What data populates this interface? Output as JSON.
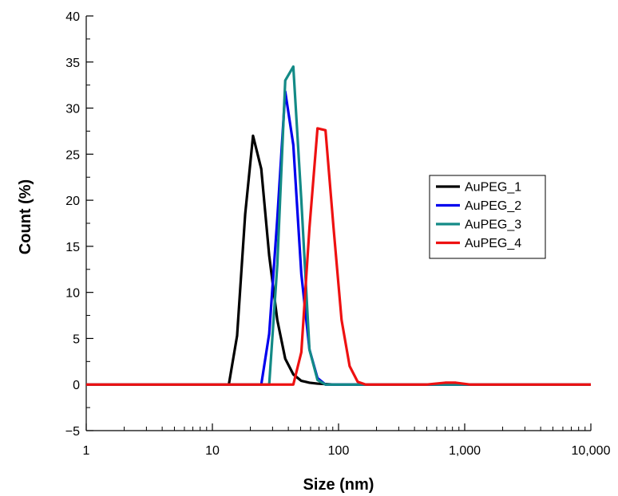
{
  "chart_data": {
    "type": "line",
    "xlabel": "Size (nm)",
    "ylabel": "Count (%)",
    "xscale": "log",
    "xlim": [
      1,
      10000
    ],
    "ylim": [
      -5,
      40
    ],
    "x_ticks": [
      {
        "value": 1,
        "label": "1"
      },
      {
        "value": 10,
        "label": "10"
      },
      {
        "value": 100,
        "label": "100"
      },
      {
        "value": 1000,
        "label": "1,000"
      },
      {
        "value": 10000,
        "label": "10,000"
      }
    ],
    "y_ticks": [
      {
        "value": -5,
        "label": "−5"
      },
      {
        "value": 0,
        "label": "0"
      },
      {
        "value": 5,
        "label": "5"
      },
      {
        "value": 10,
        "label": "10"
      },
      {
        "value": 15,
        "label": "15"
      },
      {
        "value": 20,
        "label": "20"
      },
      {
        "value": 25,
        "label": "25"
      },
      {
        "value": 30,
        "label": "30"
      },
      {
        "value": 35,
        "label": "35"
      },
      {
        "value": 40,
        "label": "40"
      }
    ],
    "legend": "right",
    "grid": false,
    "series": [
      {
        "name": "AuPEG_1",
        "color": "#000000",
        "points": [
          [
            1,
            0
          ],
          [
            13.5,
            0
          ],
          [
            15.7,
            5.3
          ],
          [
            18.2,
            18.5
          ],
          [
            21,
            27
          ],
          [
            24.4,
            23.4
          ],
          [
            28.2,
            14
          ],
          [
            32.7,
            7
          ],
          [
            37.8,
            2.8
          ],
          [
            43.8,
            1.1
          ],
          [
            50.7,
            0.4
          ],
          [
            58.8,
            0.2
          ],
          [
            68.1,
            0.1
          ],
          [
            78.8,
            0.05
          ],
          [
            91.3,
            0
          ],
          [
            10000,
            0
          ]
        ]
      },
      {
        "name": "AuPEG_2",
        "color": "#0000ee",
        "points": [
          [
            1,
            0
          ],
          [
            24.4,
            0
          ],
          [
            28.2,
            5.5
          ],
          [
            32.7,
            18
          ],
          [
            37.8,
            31.8
          ],
          [
            43.8,
            26
          ],
          [
            50.7,
            12
          ],
          [
            58.8,
            3.8
          ],
          [
            68.1,
            0.7
          ],
          [
            78.8,
            0
          ],
          [
            10000,
            0
          ]
        ]
      },
      {
        "name": "AuPEG_3",
        "color": "#138a86",
        "points": [
          [
            1,
            0
          ],
          [
            28.2,
            0
          ],
          [
            32.7,
            13
          ],
          [
            37.8,
            33
          ],
          [
            43.8,
            34.5
          ],
          [
            50.7,
            20
          ],
          [
            58.8,
            3.8
          ],
          [
            68.1,
            0.5
          ],
          [
            78.8,
            0
          ],
          [
            10000,
            0
          ]
        ]
      },
      {
        "name": "AuPEG_4",
        "color": "#ee1111",
        "points": [
          [
            1,
            0
          ],
          [
            43.8,
            0
          ],
          [
            50.7,
            3.5
          ],
          [
            58.8,
            17
          ],
          [
            68.1,
            27.8
          ],
          [
            78.8,
            27.6
          ],
          [
            91.3,
            17
          ],
          [
            105.7,
            7
          ],
          [
            122.4,
            2
          ],
          [
            141.8,
            0.3
          ],
          [
            164.2,
            0
          ],
          [
            500,
            0
          ],
          [
            700,
            0.2
          ],
          [
            850,
            0.2
          ],
          [
            1100,
            0
          ],
          [
            10000,
            0
          ]
        ]
      }
    ]
  }
}
